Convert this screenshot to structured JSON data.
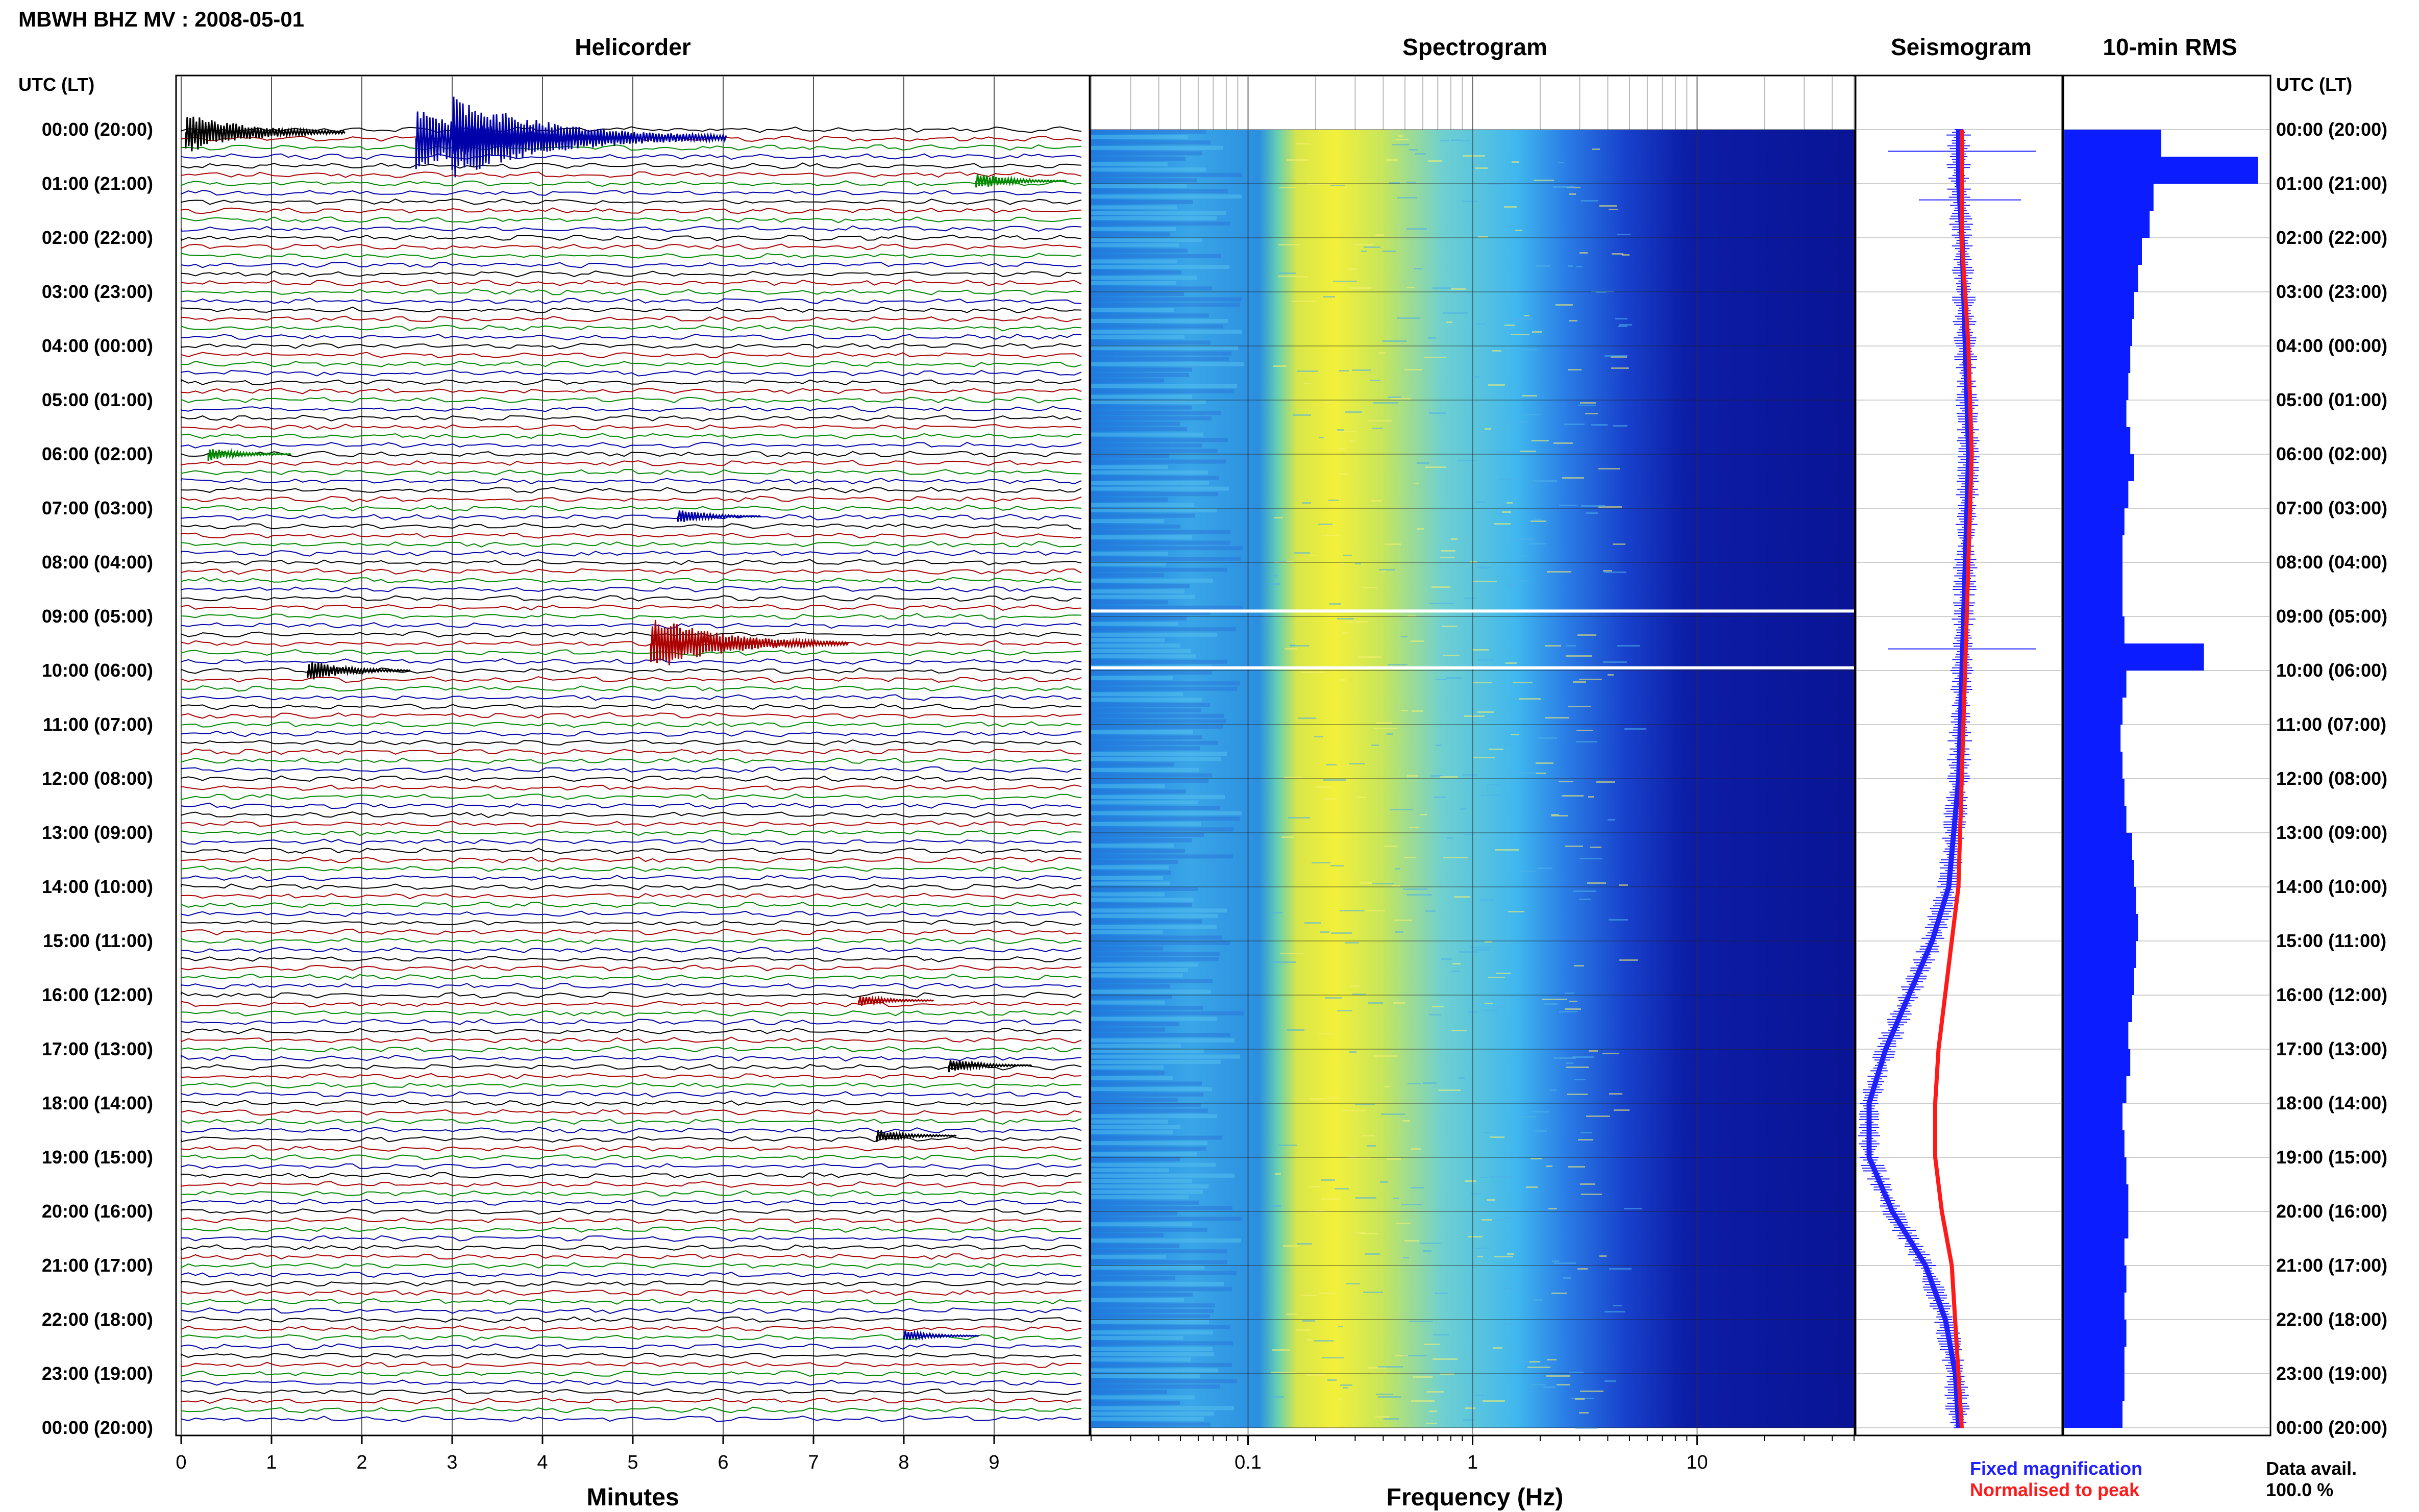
{
  "header": {
    "title": "MBWH BHZ MV : 2008-05-01",
    "helicorder_title": "Helicorder",
    "spectrogram_title": "Spectrogram",
    "seismogram_title": "Seismogram",
    "rms_title": "10-min RMS",
    "utc_label_left": "UTC (LT)",
    "utc_label_right": "UTC (LT)"
  },
  "time_labels": [
    "00:00 (20:00)",
    "01:00 (21:00)",
    "02:00 (22:00)",
    "03:00 (23:00)",
    "04:00 (00:00)",
    "05:00 (01:00)",
    "06:00 (02:00)",
    "07:00 (03:00)",
    "08:00 (04:00)",
    "09:00 (05:00)",
    "10:00 (06:00)",
    "11:00 (07:00)",
    "12:00 (08:00)",
    "13:00 (09:00)",
    "14:00 (10:00)",
    "15:00 (11:00)",
    "16:00 (12:00)",
    "17:00 (13:00)",
    "18:00 (14:00)",
    "19:00 (15:00)",
    "20:00 (16:00)",
    "21:00 (17:00)",
    "22:00 (18:00)",
    "23:00 (19:00)",
    "00:00 (20:00)"
  ],
  "helicorder": {
    "xlabel": "Minutes",
    "x_ticks": [
      "0",
      "1",
      "2",
      "3",
      "4",
      "5",
      "6",
      "7",
      "8",
      "9"
    ],
    "xlim": [
      0,
      10
    ],
    "trace_colors": [
      "#000000",
      "#aa0000",
      "#008800",
      "#0000aa"
    ],
    "events": [
      {
        "hour": 0.05,
        "minute": 0.05,
        "amp": 3.0,
        "color": "#000000"
      },
      {
        "hour": 0.15,
        "minute": 2.6,
        "amp": 4.5,
        "color": "#0000aa"
      },
      {
        "hour": 0.15,
        "minute": 3.0,
        "amp": 6.0,
        "color": "#0000aa"
      },
      {
        "hour": 0.95,
        "minute": 8.8,
        "amp": 1.2,
        "color": "#008800"
      },
      {
        "hour": 6.0,
        "minute": 0.3,
        "amp": 1.0,
        "color": "#008800"
      },
      {
        "hour": 7.15,
        "minute": 5.5,
        "amp": 1.0,
        "color": "#0000aa"
      },
      {
        "hour": 9.5,
        "minute": 5.2,
        "amp": 4.0,
        "color": "#aa0000"
      },
      {
        "hour": 10.0,
        "minute": 1.4,
        "amp": 1.5,
        "color": "#000000"
      },
      {
        "hour": 16.1,
        "minute": 7.5,
        "amp": 0.8,
        "color": "#aa0000"
      },
      {
        "hour": 17.3,
        "minute": 8.5,
        "amp": 1.0,
        "color": "#000000"
      },
      {
        "hour": 18.6,
        "minute": 7.7,
        "amp": 0.9,
        "color": "#000000"
      },
      {
        "hour": 22.3,
        "minute": 8.0,
        "amp": 0.8,
        "color": "#0000aa"
      }
    ]
  },
  "spectrogram": {
    "xlabel": "Frequency (Hz)",
    "x_ticks": [
      "0.1",
      "1",
      "10"
    ],
    "xlim": [
      0.02,
      50
    ],
    "scale": "log",
    "gaps_hours": [
      8.9,
      9.95
    ]
  },
  "seismogram": {
    "legend_fixed": "Fixed magnification",
    "legend_normalised": "Normalised to peak",
    "legend_fixed_color": "#2020ff",
    "legend_normalised_color": "#ff2020"
  },
  "data_availability": {
    "label": "Data avail.",
    "value": "100.0 %"
  },
  "chart_data": {
    "type": "bar",
    "name": "10-min RMS",
    "orientation": "horizontal",
    "hours": [
      0,
      0.5,
      1,
      1.5,
      2,
      2.5,
      3,
      3.5,
      4,
      4.5,
      5,
      5.5,
      6,
      6.5,
      7,
      7.5,
      8,
      8.5,
      9,
      9.5,
      10,
      10.5,
      11,
      11.5,
      12,
      12.5,
      13,
      13.5,
      14,
      14.5,
      15,
      15.5,
      16,
      16.5,
      17,
      17.5,
      18,
      18.5,
      19,
      19.5,
      20,
      20.5,
      21,
      21.5,
      22,
      22.5,
      23,
      23.5
    ],
    "values": [
      0.5,
      1.0,
      0.46,
      0.44,
      0.4,
      0.38,
      0.36,
      0.35,
      0.34,
      0.33,
      0.32,
      0.34,
      0.36,
      0.33,
      0.31,
      0.3,
      0.3,
      0.3,
      0.31,
      0.72,
      0.32,
      0.3,
      0.29,
      0.3,
      0.31,
      0.32,
      0.35,
      0.36,
      0.37,
      0.38,
      0.37,
      0.36,
      0.35,
      0.33,
      0.34,
      0.32,
      0.3,
      0.31,
      0.32,
      0.33,
      0.33,
      0.31,
      0.32,
      0.31,
      0.32,
      0.31,
      0.31,
      0.3
    ],
    "seismogram_envelope": {
      "hours": [
        0,
        1,
        2,
        4,
        6,
        8,
        10,
        12,
        14,
        15,
        16,
        17,
        18,
        19,
        20,
        21,
        22,
        23,
        24
      ],
      "fixed_offset": [
        0.0,
        0.0,
        0.01,
        0.02,
        0.03,
        0.02,
        0.01,
        0.0,
        -0.03,
        -0.08,
        -0.15,
        -0.22,
        -0.27,
        -0.27,
        -0.2,
        -0.1,
        -0.04,
        -0.01,
        0.0
      ],
      "normalised_offset": [
        0.0,
        0.0,
        0.0,
        0.02,
        0.03,
        0.02,
        0.01,
        0.0,
        -0.01,
        -0.03,
        -0.05,
        -0.07,
        -0.08,
        -0.08,
        -0.06,
        -0.03,
        -0.02,
        -0.01,
        0.0
      ]
    }
  }
}
